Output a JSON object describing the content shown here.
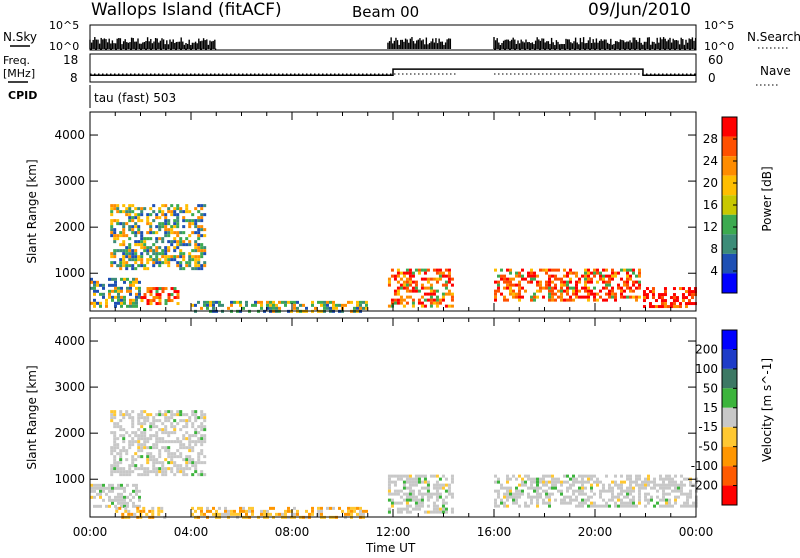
{
  "header": {
    "station": "Wallops Island (fitACF)",
    "beam": "Beam 00",
    "date": "09/Jun/2010"
  },
  "strip_labels": {
    "nsky": "N.Sky",
    "nsearch": "N.Search",
    "freq_line1": "Freq.",
    "freq_line2": "[MHz]",
    "nave": "Nave",
    "cpid": "CPID",
    "cpid_value": "tau (fast) 503"
  },
  "noise_axis_ticks": [
    "10^5",
    "10^0"
  ],
  "freq_axis_ticks": [
    "18",
    "8"
  ],
  "nave_axis_ticks": [
    "60",
    "0"
  ],
  "x_ticks": [
    "00:00",
    "04:00",
    "08:00",
    "12:00",
    "16:00",
    "20:00",
    "00:00"
  ],
  "x_label": "Time UT",
  "colors": {
    "power": [
      "#0000ff",
      "#1e50b4",
      "#3c8c78",
      "#3caa50",
      "#c8c800",
      "#ffbe00",
      "#ff8c00",
      "#ff5000",
      "#ff0000"
    ],
    "velocity": [
      "#0000ff",
      "#1e3cc8",
      "#3c7864",
      "#3cb43c",
      "#c8c8c8",
      "#ffc832",
      "#ff9600",
      "#ff5a00",
      "#ff0000"
    ]
  },
  "chart_data": [
    {
      "type": "line",
      "title": "N.Sky",
      "x_unit": "hours UT",
      "y_scale": "log",
      "ylim": [
        "10^0",
        "10^5"
      ],
      "series": [
        {
          "name": "N.Sky",
          "segments": [
            [
              0,
              5.0
            ],
            [
              11.8,
              14.3
            ],
            [
              16.0,
              24.0
            ]
          ]
        }
      ]
    },
    {
      "type": "line",
      "title": "Freq. [MHz]",
      "ylim": [
        8,
        18
      ],
      "series": [
        {
          "name": "Freq.",
          "x": [
            0,
            12,
            12,
            14.5,
            16,
            16,
            21.9,
            21.9,
            24
          ],
          "values": [
            10.4,
            10.4,
            12.6,
            12.6,
            12.6,
            12.6,
            12.6,
            10.4,
            10.4
          ]
        },
        {
          "name": "Nave",
          "x": [
            0,
            14.5,
            16,
            24
          ],
          "values": [
            15,
            15,
            15,
            15
          ]
        }
      ]
    },
    {
      "type": "heatmap",
      "title": "Power",
      "xlabel": "Time UT",
      "ylabel": "Slant Range [km]",
      "xlim": [
        "00:00",
        "24:00"
      ],
      "ylim": [
        180,
        4500
      ],
      "y_ticks": [
        1000,
        2000,
        3000,
        4000
      ],
      "colorbar": {
        "label": "Power [dB]",
        "ticks": [
          4,
          8,
          12,
          16,
          20,
          24,
          28
        ],
        "range": [
          0,
          32
        ]
      },
      "data_gap": [
        "14:30",
        "16:00"
      ],
      "echo_regions": [
        {
          "t": [
            0.0,
            2.0
          ],
          "range_km": [
            300,
            900
          ],
          "level": "mid"
        },
        {
          "t": [
            0.8,
            4.5
          ],
          "range_km": [
            1100,
            2500
          ],
          "level": "mid"
        },
        {
          "t": [
            2.0,
            3.5
          ],
          "range_km": [
            350,
            700
          ],
          "level": "high"
        },
        {
          "t": [
            4.0,
            11.0
          ],
          "range_km": [
            200,
            400
          ],
          "level": "mid"
        },
        {
          "t": [
            11.8,
            14.3
          ],
          "range_km": [
            300,
            1100
          ],
          "level": "high"
        },
        {
          "t": [
            16.0,
            21.8
          ],
          "range_km": [
            400,
            1100
          ],
          "level": "high"
        },
        {
          "t": [
            21.9,
            24.0
          ],
          "range_km": [
            300,
            700
          ],
          "level": "very-high"
        }
      ]
    },
    {
      "type": "heatmap",
      "title": "Velocity",
      "xlabel": "Time UT",
      "ylabel": "Slant Range [km]",
      "xlim": [
        "00:00",
        "24:00"
      ],
      "ylim": [
        180,
        4500
      ],
      "y_ticks": [
        1000,
        2000,
        3000,
        4000
      ],
      "colorbar": {
        "label": "Velocity [m s^-1]",
        "ticks": [
          200,
          100,
          50,
          15,
          -15,
          -50,
          -100,
          -200
        ],
        "range": [
          -250,
          250
        ]
      },
      "data_gap": [
        "14:30",
        "16:00"
      ],
      "echo_regions": [
        {
          "t": [
            0.0,
            2.0
          ],
          "range_km": [
            400,
            900
          ],
          "class": "ground-scatter"
        },
        {
          "t": [
            0.8,
            4.5
          ],
          "range_km": [
            1100,
            2500
          ],
          "class": "ground-scatter"
        },
        {
          "t": [
            1.0,
            3.0
          ],
          "range_km": [
            200,
            400
          ],
          "class": "negative"
        },
        {
          "t": [
            4.0,
            11.0
          ],
          "range_km": [
            200,
            400
          ],
          "class": "negative"
        },
        {
          "t": [
            11.8,
            14.3
          ],
          "range_km": [
            300,
            1100
          ],
          "class": "ground-scatter"
        },
        {
          "t": [
            16.0,
            24.0
          ],
          "range_km": [
            400,
            1100
          ],
          "class": "ground-scatter"
        }
      ]
    }
  ]
}
